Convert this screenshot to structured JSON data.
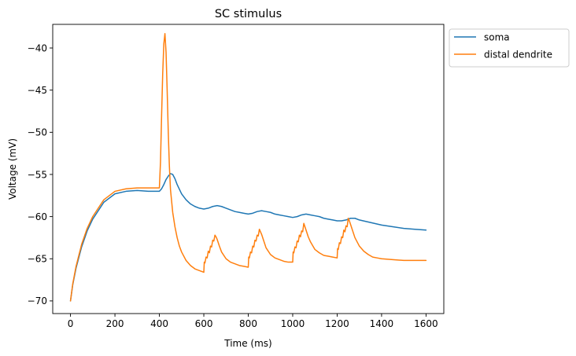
{
  "chart_data": {
    "type": "line",
    "title": "SC stimulus",
    "xlabel": "Time (ms)",
    "ylabel": "Voltage (mV)",
    "xlim": [
      -80,
      1680
    ],
    "ylim": [
      -71.5,
      -37.2
    ],
    "xticks": [
      0,
      200,
      400,
      600,
      800,
      1000,
      1200,
      1400,
      1600
    ],
    "xtick_labels": [
      "0",
      "200",
      "400",
      "600",
      "800",
      "1000",
      "1200",
      "1400",
      "1600"
    ],
    "yticks": [
      -70,
      -65,
      -60,
      -55,
      -50,
      -45,
      -40
    ],
    "ytick_labels": [
      "−70",
      "−65",
      "−60",
      "−55",
      "−50",
      "−45",
      "−40"
    ],
    "grid": false,
    "legend_position": "outside-upper-right",
    "series": [
      {
        "name": "soma",
        "color": "#1f77b4",
        "x": [
          0,
          10,
          25,
          50,
          75,
          100,
          150,
          200,
          250,
          300,
          350,
          400,
          410,
          420,
          430,
          440,
          450,
          460,
          470,
          480,
          500,
          520,
          540,
          560,
          580,
          600,
          620,
          640,
          660,
          680,
          700,
          720,
          740,
          760,
          780,
          800,
          820,
          840,
          860,
          880,
          900,
          920,
          940,
          960,
          980,
          1000,
          1020,
          1040,
          1060,
          1080,
          1100,
          1120,
          1140,
          1160,
          1180,
          1200,
          1220,
          1240,
          1260,
          1280,
          1300,
          1350,
          1400,
          1450,
          1500,
          1550,
          1600
        ],
        "y": [
          -70,
          -68.1,
          -66.1,
          -63.6,
          -61.7,
          -60.3,
          -58.3,
          -57.3,
          -57.0,
          -56.9,
          -57.0,
          -57.0,
          -56.7,
          -56.2,
          -55.6,
          -55.2,
          -54.9,
          -55.0,
          -55.5,
          -56.2,
          -57.3,
          -58.0,
          -58.5,
          -58.8,
          -59.0,
          -59.1,
          -59.0,
          -58.8,
          -58.7,
          -58.8,
          -59.0,
          -59.2,
          -59.4,
          -59.5,
          -59.6,
          -59.7,
          -59.6,
          -59.4,
          -59.3,
          -59.4,
          -59.5,
          -59.7,
          -59.8,
          -59.9,
          -60.0,
          -60.1,
          -60.0,
          -59.8,
          -59.7,
          -59.8,
          -59.9,
          -60.0,
          -60.2,
          -60.3,
          -60.4,
          -60.5,
          -60.5,
          -60.4,
          -60.2,
          -60.2,
          -60.4,
          -60.7,
          -61.0,
          -61.2,
          -61.4,
          -61.5,
          -61.6
        ]
      },
      {
        "name": "distal dendrite",
        "color": "#ff7f0e",
        "x": [
          0,
          10,
          25,
          50,
          75,
          100,
          150,
          200,
          250,
          300,
          350,
          400,
          405,
          410,
          415,
          420,
          425,
          430,
          435,
          440,
          445,
          450,
          460,
          470,
          480,
          490,
          500,
          520,
          540,
          560,
          580,
          600,
          602,
          605,
          610,
          615,
          620,
          625,
          630,
          635,
          640,
          645,
          650,
          655,
          660,
          670,
          680,
          700,
          720,
          740,
          760,
          780,
          800,
          802,
          805,
          810,
          815,
          820,
          825,
          830,
          835,
          840,
          845,
          850,
          855,
          860,
          870,
          880,
          900,
          920,
          940,
          960,
          980,
          1000,
          1002,
          1005,
          1010,
          1015,
          1020,
          1025,
          1030,
          1035,
          1040,
          1045,
          1050,
          1055,
          1060,
          1070,
          1080,
          1100,
          1120,
          1140,
          1160,
          1180,
          1200,
          1202,
          1205,
          1210,
          1215,
          1220,
          1225,
          1230,
          1235,
          1240,
          1245,
          1250,
          1255,
          1260,
          1270,
          1280,
          1300,
          1320,
          1340,
          1360,
          1380,
          1400,
          1450,
          1500,
          1550,
          1600
        ],
        "y": [
          -70,
          -68.0,
          -65.9,
          -63.3,
          -61.4,
          -60.0,
          -58.0,
          -57.0,
          -56.7,
          -56.6,
          -56.6,
          -56.6,
          -53.5,
          -48.0,
          -43.0,
          -39.5,
          -38.3,
          -40.5,
          -45.0,
          -50.0,
          -54.0,
          -56.8,
          -59.5,
          -61.2,
          -62.5,
          -63.5,
          -64.2,
          -65.2,
          -65.8,
          -66.2,
          -66.4,
          -66.6,
          -65.4,
          -65.5,
          -64.8,
          -64.9,
          -64.1,
          -64.3,
          -63.5,
          -63.6,
          -62.8,
          -62.9,
          -62.2,
          -62.4,
          -62.7,
          -63.5,
          -64.2,
          -65.0,
          -65.4,
          -65.6,
          -65.8,
          -65.9,
          -66.0,
          -64.8,
          -64.9,
          -64.2,
          -64.3,
          -63.5,
          -63.6,
          -62.8,
          -62.9,
          -62.2,
          -62.3,
          -61.5,
          -61.8,
          -62.1,
          -62.9,
          -63.7,
          -64.5,
          -64.9,
          -65.1,
          -65.3,
          -65.4,
          -65.4,
          -64.2,
          -64.3,
          -63.6,
          -63.7,
          -62.9,
          -63.0,
          -62.2,
          -62.4,
          -61.7,
          -61.8,
          -60.8,
          -61.2,
          -61.6,
          -62.4,
          -63.0,
          -63.9,
          -64.3,
          -64.6,
          -64.7,
          -64.8,
          -64.9,
          -63.8,
          -63.9,
          -63.1,
          -63.2,
          -62.4,
          -62.5,
          -61.6,
          -61.8,
          -61.1,
          -61.2,
          -60.2,
          -60.5,
          -60.9,
          -61.7,
          -62.5,
          -63.5,
          -64.1,
          -64.5,
          -64.8,
          -64.9,
          -65.0,
          -65.1,
          -65.2,
          -65.2,
          -65.2
        ]
      }
    ]
  }
}
